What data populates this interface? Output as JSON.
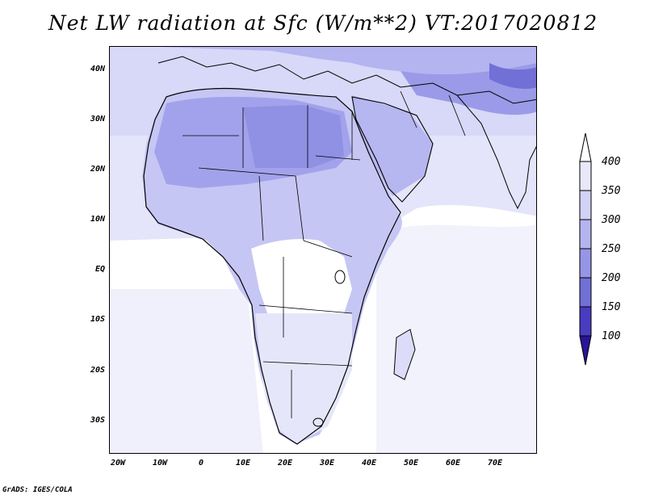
{
  "title": "Net LW radiation at Sfc (W/m**2) VT:2017020812",
  "credit": "GrADS: IGES/COLA",
  "lat_labels": [
    "40N",
    "30N",
    "20N",
    "10N",
    "EQ",
    "10S",
    "20S",
    "30S"
  ],
  "lon_labels": [
    "20W",
    "10W",
    "0",
    "10E",
    "20E",
    "30E",
    "40E",
    "50E",
    "60E",
    "70E"
  ],
  "colorbar": {
    "labels": [
      "400",
      "350",
      "300",
      "250",
      "200",
      "150",
      "100"
    ],
    "colors": [
      "#e8e8fa",
      "#d2d2f6",
      "#b4b4f0",
      "#9696e6",
      "#7070d6",
      "#4a3cc0",
      "#2a1496"
    ]
  },
  "map": {
    "lon_range": [
      -22,
      80
    ],
    "lat_range": [
      -37,
      45
    ]
  }
}
